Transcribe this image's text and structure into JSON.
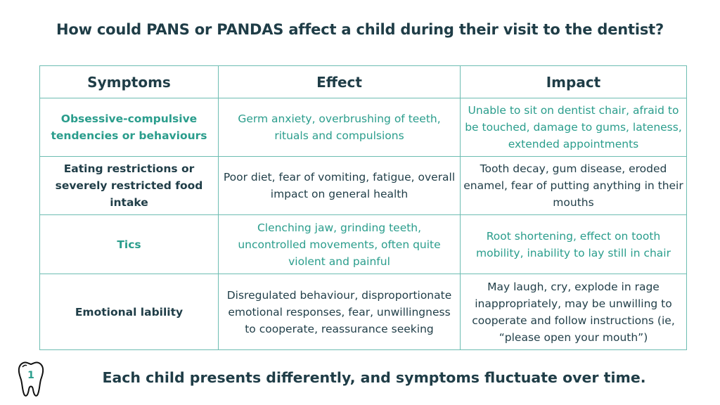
{
  "title": "How could PANS or PANDAS affect a child during their visit to the dentist?",
  "table": {
    "headers": [
      "Symptoms",
      "Effect",
      "Impact"
    ],
    "rows": [
      {
        "symptom": "Obsessive-compulsive tendencies or behaviours",
        "effect": "Germ anxiety, overbrushing of teeth, rituals and compulsions",
        "impact": "Unable to sit on dentist chair, afraid to be touched, damage to gums, lateness, extended appointments"
      },
      {
        "symptom": "Eating restrictions or severely restricted food intake",
        "effect": "Poor diet, fear of vomiting, fatigue, overall impact on general health",
        "impact": "Tooth decay, gum disease, eroded enamel, fear of putting anything in their mouths"
      },
      {
        "symptom": "Tics",
        "effect": "Clenching jaw, grinding teeth, uncontrolled movements, often quite violent and painful",
        "impact": "Root shortening, effect on tooth mobility, inability to lay still in chair"
      },
      {
        "symptom": "Emotional lability",
        "effect": "Disregulated behaviour, disproportionate emotional responses, fear, unwillingness to cooperate, reassurance seeking",
        "impact": "May laugh, cry, explode in rage inappropriately, may be unwilling to cooperate and follow instructions (ie, “please open your mouth”)"
      }
    ]
  },
  "logo": {
    "icon": "tooth-icon",
    "number": "1"
  },
  "footer": "Each child presents differently, and symptoms fluctuate over time.",
  "colors": {
    "dark": "#1f3d47",
    "teal": "#2a9d8c",
    "border": "#6dbdb2"
  }
}
